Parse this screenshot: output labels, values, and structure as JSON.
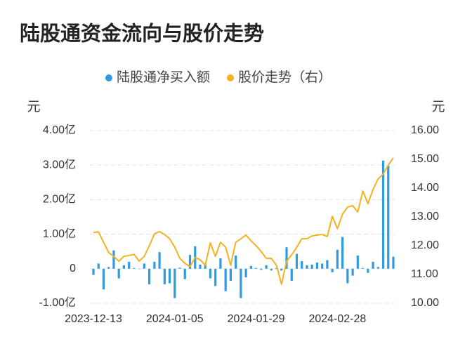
{
  "chart_data": {
    "type": "bar-line",
    "title": "陆股通资金流向与股价走势",
    "ylabel": "元",
    "y2label": "元",
    "categories": [
      "2023-12-13",
      null,
      null,
      null,
      null,
      null,
      null,
      null,
      null,
      null,
      null,
      null,
      null,
      null,
      null,
      null,
      "2024-01-05",
      null,
      null,
      null,
      null,
      null,
      null,
      null,
      null,
      null,
      null,
      null,
      null,
      null,
      null,
      null,
      "2024-01-29",
      null,
      null,
      null,
      null,
      null,
      null,
      null,
      null,
      null,
      null,
      null,
      null,
      null,
      null,
      null,
      "2024-02-28",
      null,
      null,
      null,
      null,
      null,
      null,
      null,
      null,
      null,
      null,
      null
    ],
    "series": [
      {
        "name": "陆股通净买入额",
        "type": "bar",
        "color": "#2f9ae0",
        "axis": "y",
        "values": [
          -0.18,
          0.15,
          -0.6,
          0.05,
          0.53,
          -0.28,
          0.1,
          0.2,
          0.02,
          0,
          0.15,
          -0.45,
          0.2,
          0.48,
          -0.45,
          -0.42,
          -0.85,
          0.03,
          -0.3,
          0.4,
          0.65,
          0.12,
          0.15,
          -0.28,
          -0.5,
          0.3,
          -0.65,
          -0.35,
          0.38,
          -0.85,
          -0.25,
          0.08,
          0.02,
          -0.03,
          0.1,
          -0.05,
          0.02,
          -0.05,
          0.62,
          -0.35,
          0.43,
          0.22,
          0.1,
          0.12,
          0.18,
          0.15,
          0.25,
          -0.1,
          0.55,
          0.92,
          -0.42,
          -0.2,
          0.38,
          0.02,
          -0.12,
          0.2,
          0.05,
          3.13,
          2.98,
          0.35
        ]
      },
      {
        "name": "股价走势（右）",
        "type": "line",
        "color": "#f5b21f",
        "axis": "y2",
        "values": [
          12.46,
          12.48,
          12.12,
          11.76,
          11.63,
          11.46,
          11.63,
          11.66,
          11.7,
          11.46,
          11.63,
          12.0,
          12.41,
          12.49,
          12.39,
          12.24,
          11.95,
          11.56,
          11.39,
          11.27,
          11.59,
          11.51,
          11.32,
          12.1,
          11.63,
          12.12,
          11.95,
          11.32,
          12.12,
          12.24,
          12.37,
          12.17,
          12.0,
          11.8,
          11.56,
          11.56,
          11.32,
          10.66,
          11.46,
          11.68,
          11.95,
          12.24,
          12.24,
          12.34,
          12.37,
          12.39,
          12.32,
          13.02,
          12.59,
          13.1,
          13.34,
          13.39,
          13.17,
          13.9,
          13.46,
          13.95,
          14.32,
          14.49,
          14.8,
          15.05
        ]
      }
    ],
    "ylim": [
      -1,
      4
    ],
    "yticks": [
      {
        "value": -1,
        "label": "-1.00亿"
      },
      0,
      {
        "value": 1,
        "label": "1.00亿"
      },
      {
        "value": 2,
        "label": "2.00亿"
      },
      {
        "value": 3,
        "label": "3.00亿"
      },
      {
        "value": 4,
        "label": "4.00亿"
      }
    ],
    "y2lim": [
      10,
      16
    ],
    "y2ticks": [
      {
        "value": 10,
        "label": "10.00"
      },
      {
        "value": 11,
        "label": "11.00"
      },
      {
        "value": 12,
        "label": "12.00"
      },
      {
        "value": 13,
        "label": "13.00"
      },
      {
        "value": 14,
        "label": "14.00"
      },
      {
        "value": 15,
        "label": "15.00"
      },
      {
        "value": 16,
        "label": "16.00"
      }
    ],
    "grid": true
  }
}
